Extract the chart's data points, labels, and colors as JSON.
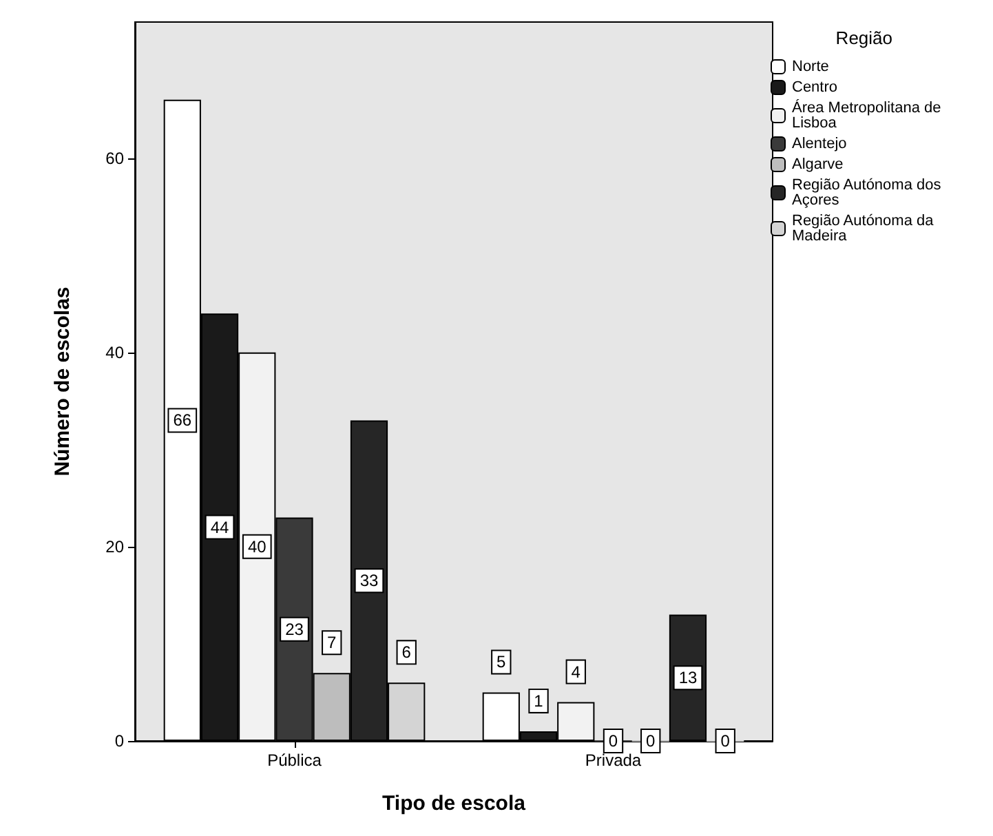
{
  "chart_data": {
    "type": "bar",
    "xlabel": "Tipo de escola",
    "ylabel": "Número de escolas",
    "legend_title": "Região",
    "categories": [
      "Pública",
      "Privada"
    ],
    "series": [
      {
        "name": "Norte",
        "color": "#ffffff",
        "values": [
          66,
          5
        ]
      },
      {
        "name": "Centro",
        "color": "#1a1a1a",
        "values": [
          44,
          1
        ]
      },
      {
        "name": "Área Metropolitana de Lisboa",
        "color": "#f2f2f2",
        "values": [
          40,
          4
        ]
      },
      {
        "name": "Alentejo",
        "color": "#3a3a3a",
        "values": [
          23,
          0
        ]
      },
      {
        "name": "Algarve",
        "color": "#bdbdbd",
        "values": [
          7,
          0
        ]
      },
      {
        "name": "Região Autónoma dos Açores",
        "color": "#262626",
        "values": [
          33,
          13
        ]
      },
      {
        "name": "Região Autónoma da Madeira",
        "color": "#d4d4d4",
        "values": [
          6,
          0
        ]
      }
    ],
    "ylim": [
      0,
      74
    ],
    "yticks": [
      0,
      20,
      40,
      60
    ],
    "data_labels": true,
    "legend": "right",
    "grid": false
  }
}
